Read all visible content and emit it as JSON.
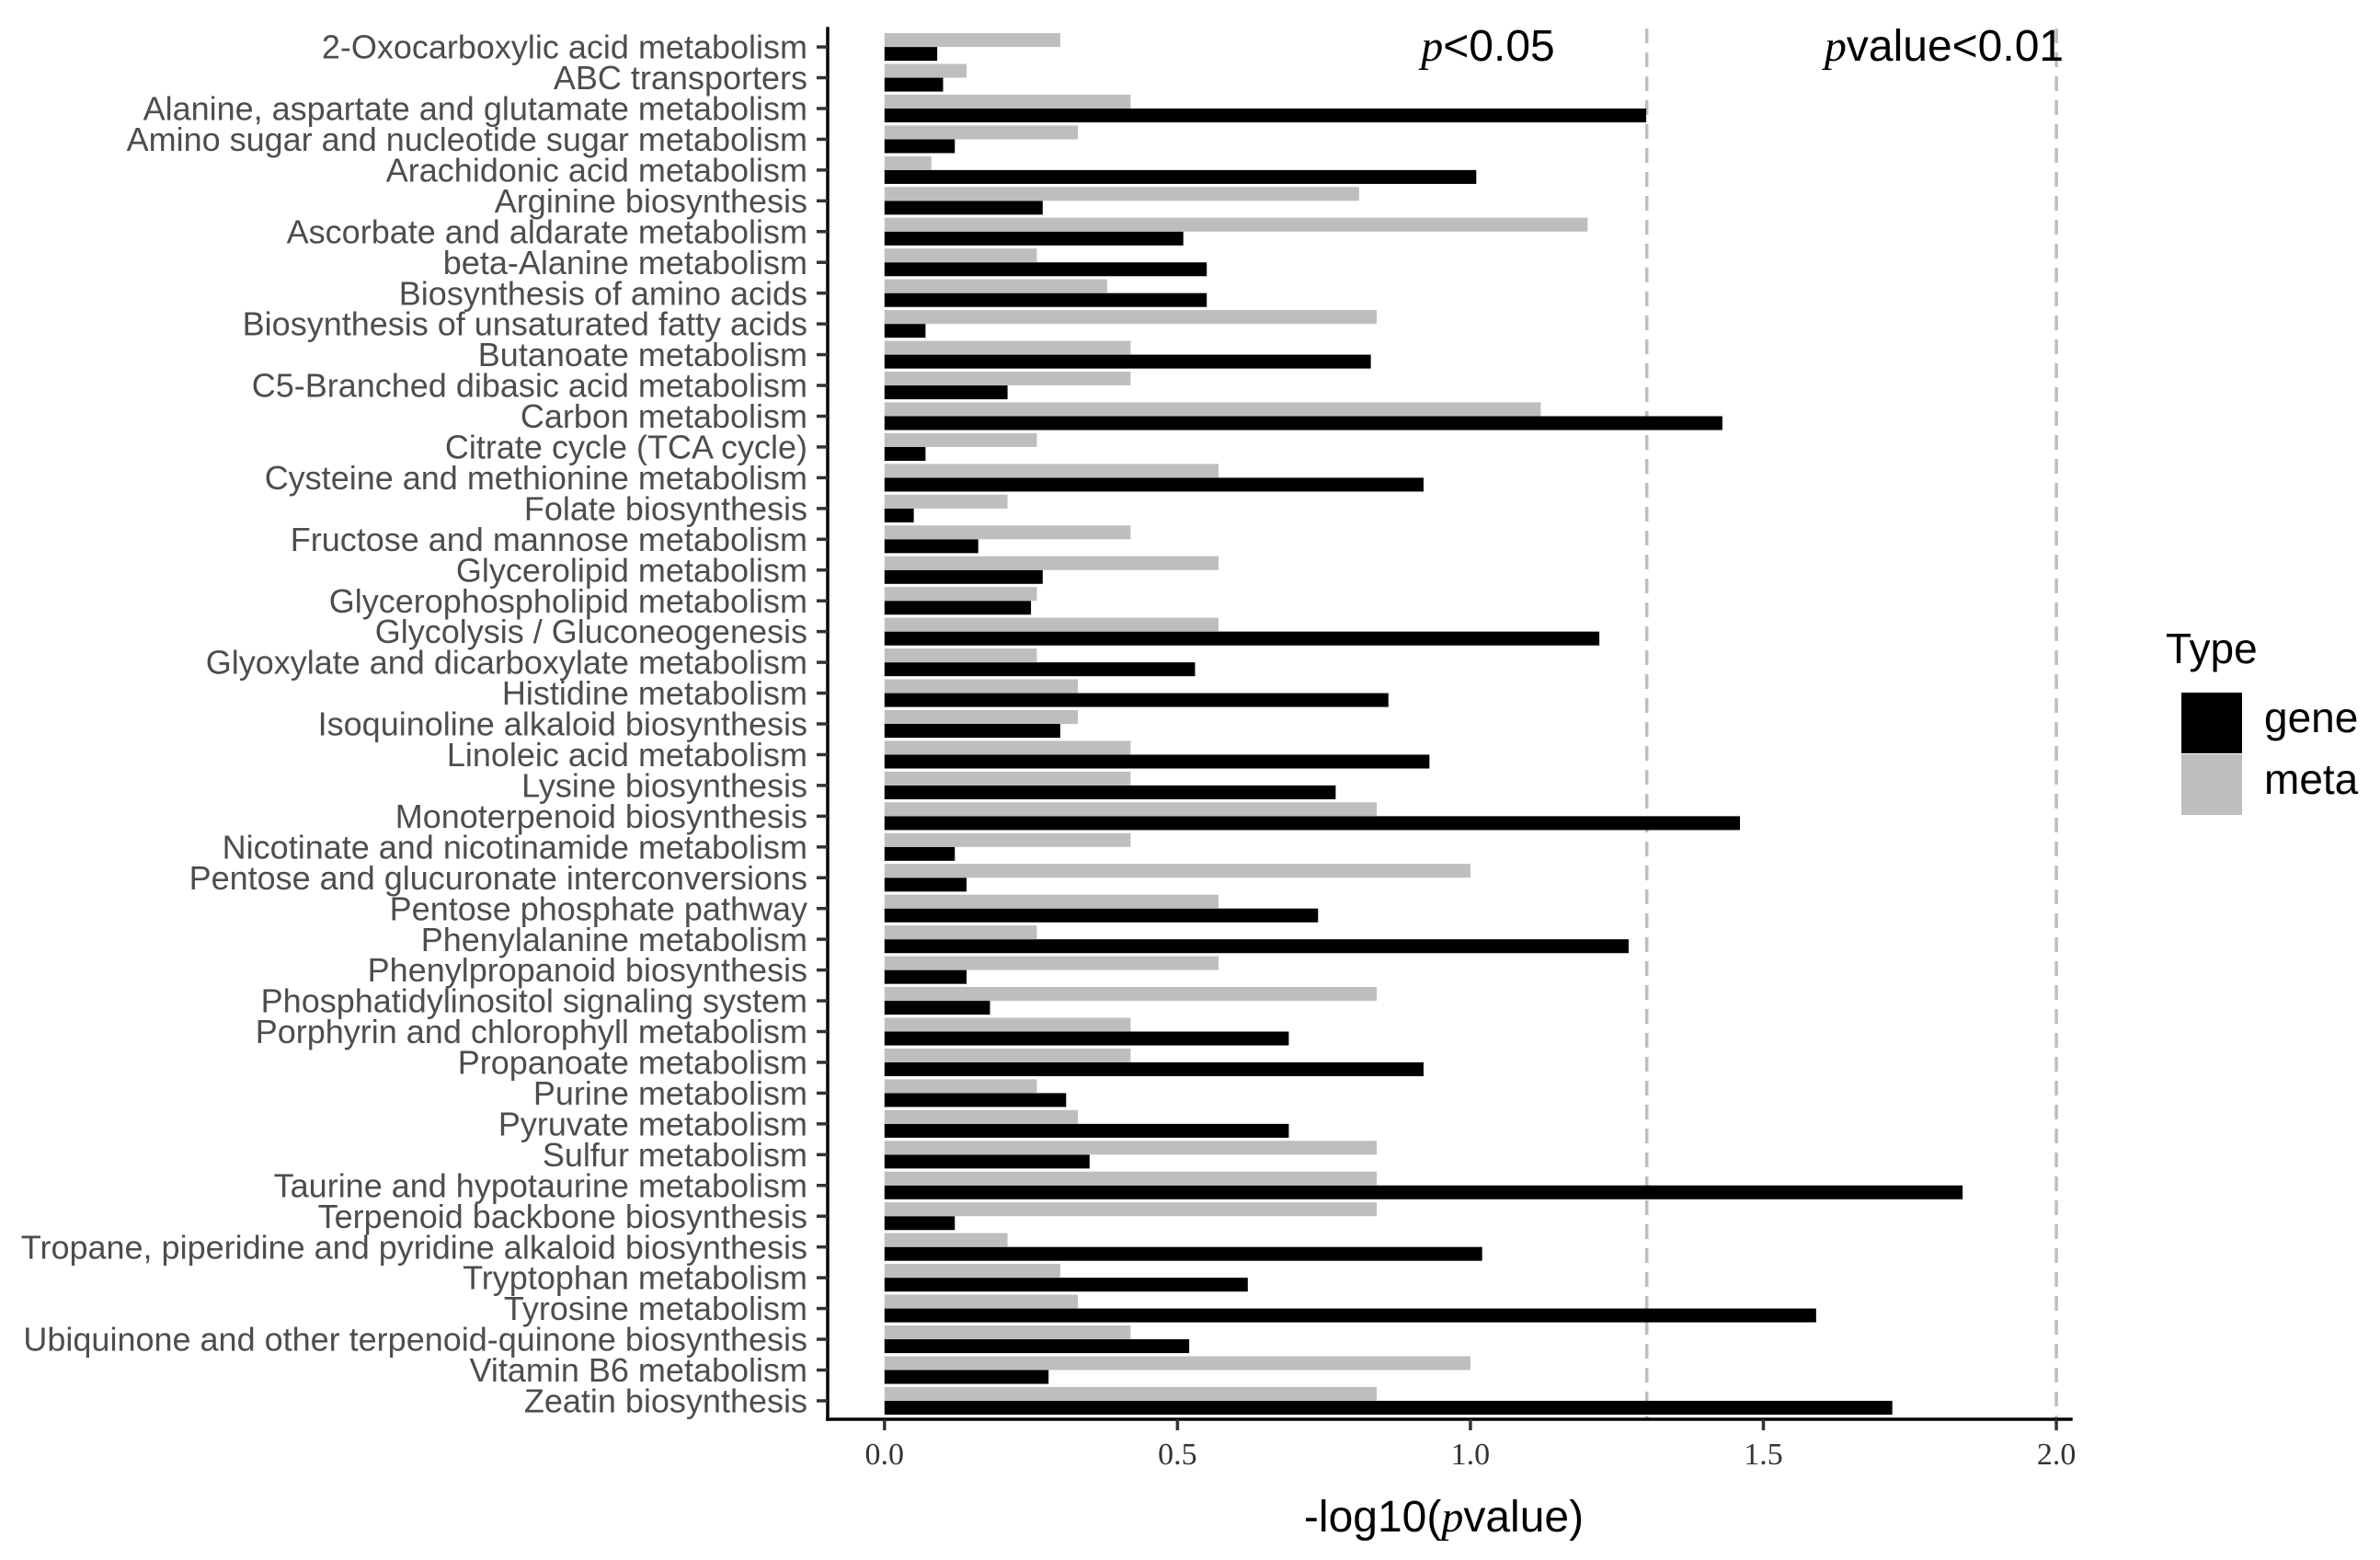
{
  "chart_data": {
    "type": "bar",
    "categories": [
      "2-Oxocarboxylic acid metabolism",
      "ABC transporters",
      "Alanine, aspartate and glutamate metabolism",
      "Amino sugar and nucleotide sugar metabolism",
      "Arachidonic acid metabolism",
      "Arginine biosynthesis",
      "Ascorbate and aldarate metabolism",
      "beta-Alanine metabolism",
      "Biosynthesis of amino acids",
      "Biosynthesis of unsaturated fatty acids",
      "Butanoate metabolism",
      "C5-Branched dibasic acid metabolism",
      "Carbon metabolism",
      "Citrate cycle (TCA cycle)",
      "Cysteine and methionine metabolism",
      "Folate biosynthesis",
      "Fructose and mannose metabolism",
      "Glycerolipid metabolism",
      "Glycerophospholipid metabolism",
      "Glycolysis / Gluconeogenesis",
      "Glyoxylate and dicarboxylate metabolism",
      "Histidine metabolism",
      "Isoquinoline alkaloid biosynthesis",
      "Linoleic acid metabolism",
      "Lysine biosynthesis",
      "Monoterpenoid biosynthesis",
      "Nicotinate and nicotinamide metabolism",
      "Pentose and glucuronate interconversions",
      "Pentose phosphate pathway",
      "Phenylalanine metabolism",
      "Phenylpropanoid biosynthesis",
      "Phosphatidylinositol signaling system",
      "Porphyrin and chlorophyll metabolism",
      "Propanoate metabolism",
      "Purine metabolism",
      "Pyruvate metabolism",
      "Sulfur metabolism",
      "Taurine and hypotaurine metabolism",
      "Terpenoid backbone biosynthesis",
      "Tropane, piperidine and pyridine alkaloid biosynthesis",
      "Tryptophan metabolism",
      "Tyrosine metabolism",
      "Ubiquinone and other terpenoid-quinone biosynthesis",
      "Vitamin B6 metabolism",
      "Zeatin biosynthesis"
    ],
    "series": [
      {
        "name": "gene",
        "color": "#000000",
        "values": [
          0.09,
          0.1,
          1.3,
          0.12,
          1.01,
          0.27,
          0.51,
          0.55,
          0.55,
          0.07,
          0.83,
          0.21,
          1.43,
          0.07,
          0.92,
          0.05,
          0.16,
          0.27,
          0.25,
          1.22,
          0.53,
          0.86,
          0.3,
          0.93,
          0.77,
          1.46,
          0.12,
          0.14,
          0.74,
          1.27,
          0.14,
          0.18,
          0.69,
          0.92,
          0.31,
          0.69,
          0.35,
          1.84,
          0.12,
          1.02,
          0.62,
          1.59,
          0.52,
          0.28,
          1.72
        ]
      },
      {
        "name": "meta",
        "color": "#bebebe",
        "values": [
          0.3,
          0.14,
          0.42,
          0.33,
          0.08,
          0.81,
          1.2,
          0.26,
          0.38,
          0.84,
          0.42,
          0.42,
          1.12,
          0.26,
          0.57,
          0.21,
          0.42,
          0.57,
          0.26,
          0.57,
          0.26,
          0.33,
          0.33,
          0.42,
          0.42,
          0.84,
          0.42,
          1.0,
          0.57,
          0.26,
          0.57,
          0.84,
          0.42,
          0.42,
          0.26,
          0.33,
          0.84,
          0.84,
          0.84,
          0.21,
          0.3,
          0.33,
          0.42,
          1.0,
          0.84
        ]
      }
    ],
    "xlabel": {
      "prefix": "-log10(",
      "italic": "p",
      "suffix": "value)"
    },
    "xlim": [
      -0.097,
      2.025
    ],
    "xticks": [
      0,
      0.5,
      1,
      1.5,
      2
    ],
    "xtick_labels": [
      "0.0",
      "0.5",
      "1.0",
      "1.5",
      "2.0"
    ],
    "reference_lines": [
      {
        "value": 1.301,
        "label_italic": "p",
        "label": "<0.05"
      },
      {
        "value": 2,
        "label_italic": "p",
        "label": "value<0.01"
      }
    ],
    "legend": {
      "title": "Type",
      "position": "right"
    }
  }
}
